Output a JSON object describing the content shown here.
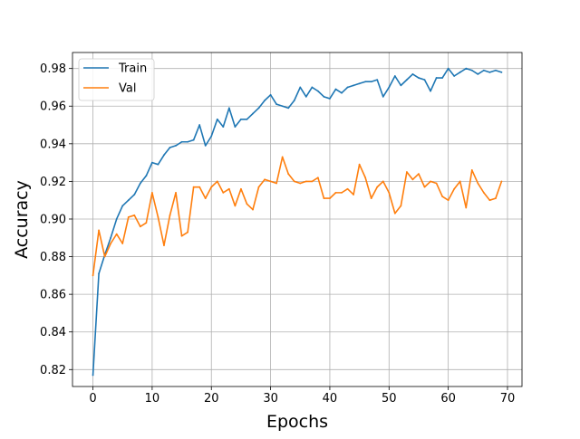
{
  "chart_data": {
    "type": "line",
    "title": "",
    "xlabel": "Epochs",
    "ylabel": "Accuracy",
    "xlim": [
      -3.45,
      72.45
    ],
    "ylim": [
      0.811,
      0.9885
    ],
    "xticks": [
      0,
      10,
      20,
      30,
      40,
      50,
      60,
      70
    ],
    "yticks": [
      0.82,
      0.84,
      0.86,
      0.88,
      0.9,
      0.92,
      0.94,
      0.96,
      0.98
    ],
    "ytick_labels": [
      "0.82",
      "0.84",
      "0.86",
      "0.88",
      "0.90",
      "0.92",
      "0.94",
      "0.96",
      "0.98"
    ],
    "grid": true,
    "legend_position": "upper-left",
    "x": [
      0,
      1,
      2,
      3,
      4,
      5,
      6,
      7,
      8,
      9,
      10,
      11,
      12,
      13,
      14,
      15,
      16,
      17,
      18,
      19,
      20,
      21,
      22,
      23,
      24,
      25,
      26,
      27,
      28,
      29,
      30,
      31,
      32,
      33,
      34,
      35,
      36,
      37,
      38,
      39,
      40,
      41,
      42,
      43,
      44,
      45,
      46,
      47,
      48,
      49,
      50,
      51,
      52,
      53,
      54,
      55,
      56,
      57,
      58,
      59,
      60,
      61,
      62,
      63,
      64,
      65,
      66,
      67,
      68,
      69
    ],
    "series": [
      {
        "name": "Train",
        "color": "#1f77b4",
        "values": [
          0.817,
          0.871,
          0.881,
          0.89,
          0.9,
          0.907,
          0.91,
          0.913,
          0.919,
          0.923,
          0.93,
          0.929,
          0.934,
          0.938,
          0.939,
          0.941,
          0.941,
          0.942,
          0.95,
          0.939,
          0.944,
          0.953,
          0.949,
          0.959,
          0.949,
          0.953,
          0.953,
          0.956,
          0.959,
          0.963,
          0.966,
          0.961,
          0.96,
          0.959,
          0.963,
          0.97,
          0.965,
          0.97,
          0.968,
          0.965,
          0.964,
          0.969,
          0.967,
          0.97,
          0.971,
          0.972,
          0.973,
          0.973,
          0.974,
          0.965,
          0.97,
          0.976,
          0.971,
          0.974,
          0.977,
          0.975,
          0.974,
          0.968,
          0.975,
          0.975,
          0.98,
          0.976,
          0.978,
          0.98,
          0.979,
          0.977,
          0.979,
          0.978,
          0.979,
          0.978
        ]
      },
      {
        "name": "Val",
        "color": "#ff7f0e",
        "values": [
          0.87,
          0.894,
          0.88,
          0.887,
          0.892,
          0.887,
          0.901,
          0.902,
          0.896,
          0.898,
          0.914,
          0.901,
          0.886,
          0.902,
          0.914,
          0.891,
          0.893,
          0.917,
          0.917,
          0.911,
          0.917,
          0.92,
          0.914,
          0.916,
          0.907,
          0.916,
          0.908,
          0.905,
          0.917,
          0.921,
          0.92,
          0.919,
          0.933,
          0.924,
          0.92,
          0.919,
          0.92,
          0.92,
          0.922,
          0.911,
          0.911,
          0.914,
          0.914,
          0.916,
          0.913,
          0.929,
          0.922,
          0.911,
          0.917,
          0.92,
          0.914,
          0.903,
          0.907,
          0.925,
          0.921,
          0.924,
          0.917,
          0.92,
          0.919,
          0.912,
          0.91,
          0.916,
          0.92,
          0.906,
          0.926,
          0.919,
          0.914,
          0.91,
          0.911,
          0.92
        ]
      }
    ]
  }
}
